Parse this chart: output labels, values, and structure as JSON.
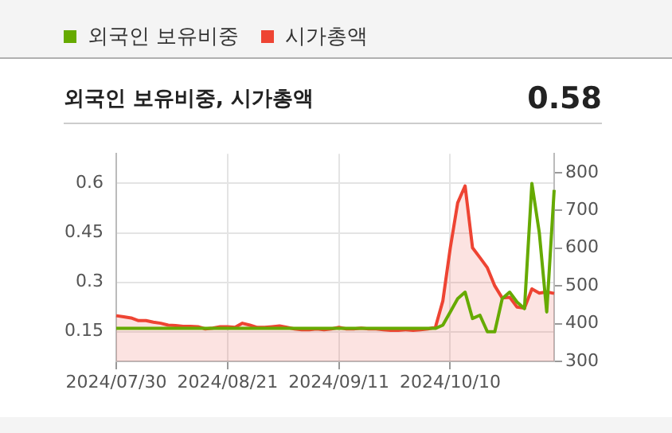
{
  "chart_data": {
    "type": "line",
    "title": "외국인 보유비중, 시가총액",
    "subtitle": "0.58",
    "categories": [
      "2024/07/30",
      null,
      null,
      null,
      null,
      null,
      null,
      null,
      null,
      null,
      null,
      null,
      null,
      null,
      null,
      "2024/08/21",
      null,
      null,
      null,
      null,
      null,
      null,
      null,
      null,
      null,
      null,
      null,
      null,
      null,
      null,
      "2024/09/11",
      null,
      null,
      null,
      null,
      null,
      null,
      null,
      null,
      null,
      null,
      null,
      null,
      null,
      null,
      "2024/10/10",
      null,
      null,
      null,
      null,
      null,
      null,
      null,
      null,
      null,
      null,
      null,
      null,
      null,
      null
    ],
    "series": [
      {
        "name": "외국인 보유비중",
        "color": "#66aa00",
        "values": [
          0.16,
          0.16,
          0.16,
          0.16,
          0.16,
          0.16,
          0.16,
          0.16,
          0.16,
          0.16,
          0.16,
          0.16,
          0.16,
          0.16,
          0.16,
          0.16,
          0.16,
          0.16,
          0.16,
          0.16,
          0.16,
          0.16,
          0.16,
          0.16,
          0.16,
          0.16,
          0.16,
          0.16,
          0.16,
          0.16,
          0.16,
          0.16,
          0.16,
          0.16,
          0.16,
          0.16,
          0.16,
          0.16,
          0.16,
          0.16,
          0.16,
          0.16,
          0.16,
          0.16,
          0.17,
          0.21,
          0.25,
          0.27,
          0.19,
          0.2,
          0.15,
          0.15,
          0.25,
          0.27,
          0.24,
          0.22,
          0.6,
          0.45,
          0.21,
          0.58
        ]
      },
      {
        "name": "시가총액",
        "color": "#ee4433",
        "type": "area",
        "axis": "y2",
        "values": [
          421,
          418,
          415,
          408,
          408,
          404,
          401,
          396,
          395,
          393,
          393,
          392,
          386,
          388,
          392,
          392,
          390,
          401,
          396,
          390,
          390,
          392,
          394,
          390,
          386,
          384,
          384,
          386,
          384,
          386,
          390,
          386,
          386,
          388,
          386,
          386,
          384,
          382,
          382,
          384,
          382,
          384,
          386,
          390,
          460,
          600,
          720,
          765,
          601,
          575,
          548,
          500,
          468,
          470,
          444,
          441,
          492,
          481,
          484,
          480
        ]
      }
    ],
    "ylim": [
      0.06,
      0.69
    ],
    "yticks": [
      0.15,
      0.3,
      0.45,
      0.6
    ],
    "y2lim": [
      300,
      850
    ],
    "y2ticks": [
      300,
      400,
      500,
      600,
      700,
      800
    ],
    "grid": true,
    "legend": "top left"
  }
}
